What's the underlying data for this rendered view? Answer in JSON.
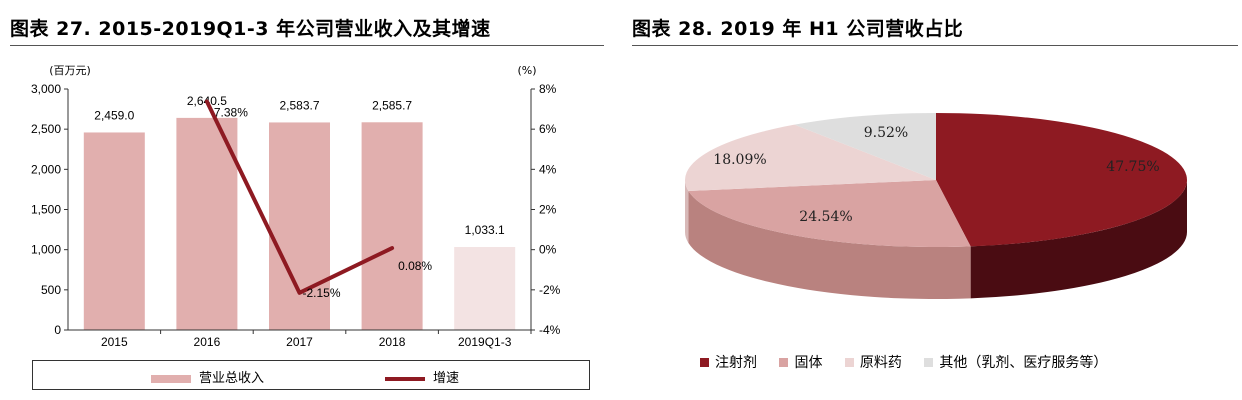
{
  "left_panel": {
    "title": "图表 27. 2015-2019Q1-3 年公司营业收入及其增速",
    "legend": {
      "bar_label": "营业总收入",
      "line_label": "增速"
    }
  },
  "right_panel": {
    "title": "图表 28. 2019 年 H1 公司营收占比"
  },
  "colors": {
    "bar": "#e1afae",
    "bar_light": "#f3e3e3",
    "line": "#8e1a22",
    "slice_injection": "#8e1a22",
    "slice_solid": "#d9a3a2",
    "slice_api": "#ecd4d3",
    "slice_other": "#dedede"
  },
  "chart_data": [
    {
      "type": "bar",
      "categories": [
        "2015",
        "2016",
        "2017",
        "2018",
        "2019Q1-3"
      ],
      "series": [
        {
          "name": "营业总收入",
          "type": "bar",
          "values": [
            2459.0,
            2640.5,
            2583.7,
            2585.7,
            1033.1
          ],
          "labels": [
            "2,459.0",
            "2,640.5",
            "2,583.7",
            "2,585.7",
            "1,033.1"
          ]
        },
        {
          "name": "增速",
          "type": "line",
          "axis": "right",
          "values": [
            null,
            7.38,
            -2.15,
            0.08,
            null
          ],
          "labels": [
            "",
            "7.38%",
            "-2.15%",
            "0.08%",
            ""
          ]
        }
      ],
      "ylabel": "(百万元)",
      "y2label": "(%)",
      "ylim": [
        0,
        3000
      ],
      "y2lim": [
        -4,
        8
      ],
      "yticks": [
        "0",
        "500",
        "1,000",
        "1,500",
        "2,000",
        "2,500",
        "3,000"
      ],
      "y2ticks": [
        "-4%",
        "-2%",
        "0%",
        "2%",
        "4%",
        "6%",
        "8%"
      ],
      "legend": "bottom"
    },
    {
      "type": "pie",
      "categories": [
        "注射剂",
        "固体",
        "原料药",
        "其他（乳剂、医疗服务等）"
      ],
      "values": [
        47.75,
        24.54,
        18.09,
        9.52
      ],
      "labels": [
        "47.75%",
        "24.54%",
        "18.09%",
        "9.52%"
      ],
      "legend": "bottom"
    }
  ]
}
